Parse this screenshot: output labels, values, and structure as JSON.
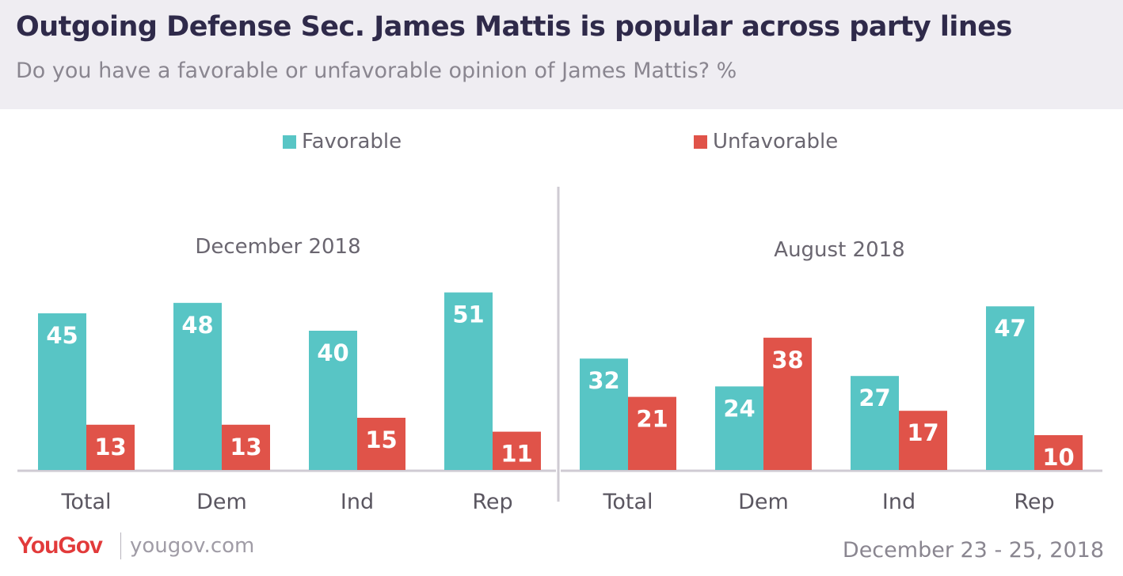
{
  "header": {
    "title": "Outgoing Defense Sec. James Mattis is popular across party lines",
    "subtitle": "Do you have a favorable or unfavorable opinion of James Mattis? %"
  },
  "legend": {
    "favorable": "Favorable",
    "unfavorable": "Unfavorable"
  },
  "colors": {
    "favorable": "#58c5c5",
    "unfavorable": "#e05349",
    "header_bg": "#efedf2",
    "title": "#2f2a4a",
    "muted_text": "#8a8690"
  },
  "footer": {
    "brand": "YouGov",
    "site": "yougov.com",
    "date": "December 23 - 25, 2018"
  },
  "chart_data": [
    {
      "type": "bar",
      "title": "December 2018",
      "categories": [
        "Total",
        "Dem",
        "Ind",
        "Rep"
      ],
      "series": [
        {
          "name": "Favorable",
          "values": [
            45,
            48,
            40,
            51
          ]
        },
        {
          "name": "Unfavorable",
          "values": [
            13,
            13,
            15,
            11
          ]
        }
      ],
      "ylim": [
        0,
        60
      ],
      "grid": false,
      "legend": "top"
    },
    {
      "type": "bar",
      "title": "August 2018",
      "categories": [
        "Total",
        "Dem",
        "Ind",
        "Rep"
      ],
      "series": [
        {
          "name": "Favorable",
          "values": [
            32,
            24,
            27,
            47
          ]
        },
        {
          "name": "Unfavorable",
          "values": [
            21,
            38,
            17,
            10
          ]
        }
      ],
      "ylim": [
        0,
        60
      ],
      "grid": false,
      "legend": "top"
    }
  ]
}
